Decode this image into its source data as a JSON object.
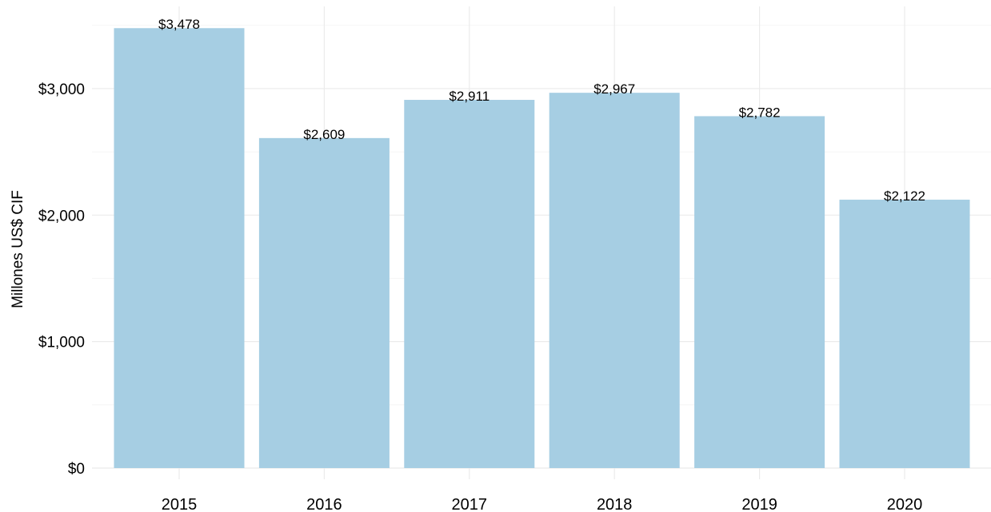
{
  "chart_data": {
    "type": "bar",
    "y_label": "Millones US$ CIF",
    "categories": [
      "2015",
      "2016",
      "2017",
      "2018",
      "2019",
      "2020"
    ],
    "values": [
      3478,
      2609,
      2911,
      2967,
      2782,
      2122
    ],
    "value_labels": [
      "$3,478",
      "$2,609",
      "$2,911",
      "$2,967",
      "$2,782",
      "$2,122"
    ],
    "color": "#a6cee3",
    "ylim": [
      0,
      3650
    ],
    "yticks": [
      {
        "value": 0,
        "label": "$0"
      },
      {
        "value": 1000,
        "label": "$1,000"
      },
      {
        "value": 2000,
        "label": "$2,000"
      },
      {
        "value": 3000,
        "label": "$3,000"
      }
    ],
    "minor_yticks": [
      500,
      1500,
      2500,
      3500
    ],
    "grid": true
  }
}
